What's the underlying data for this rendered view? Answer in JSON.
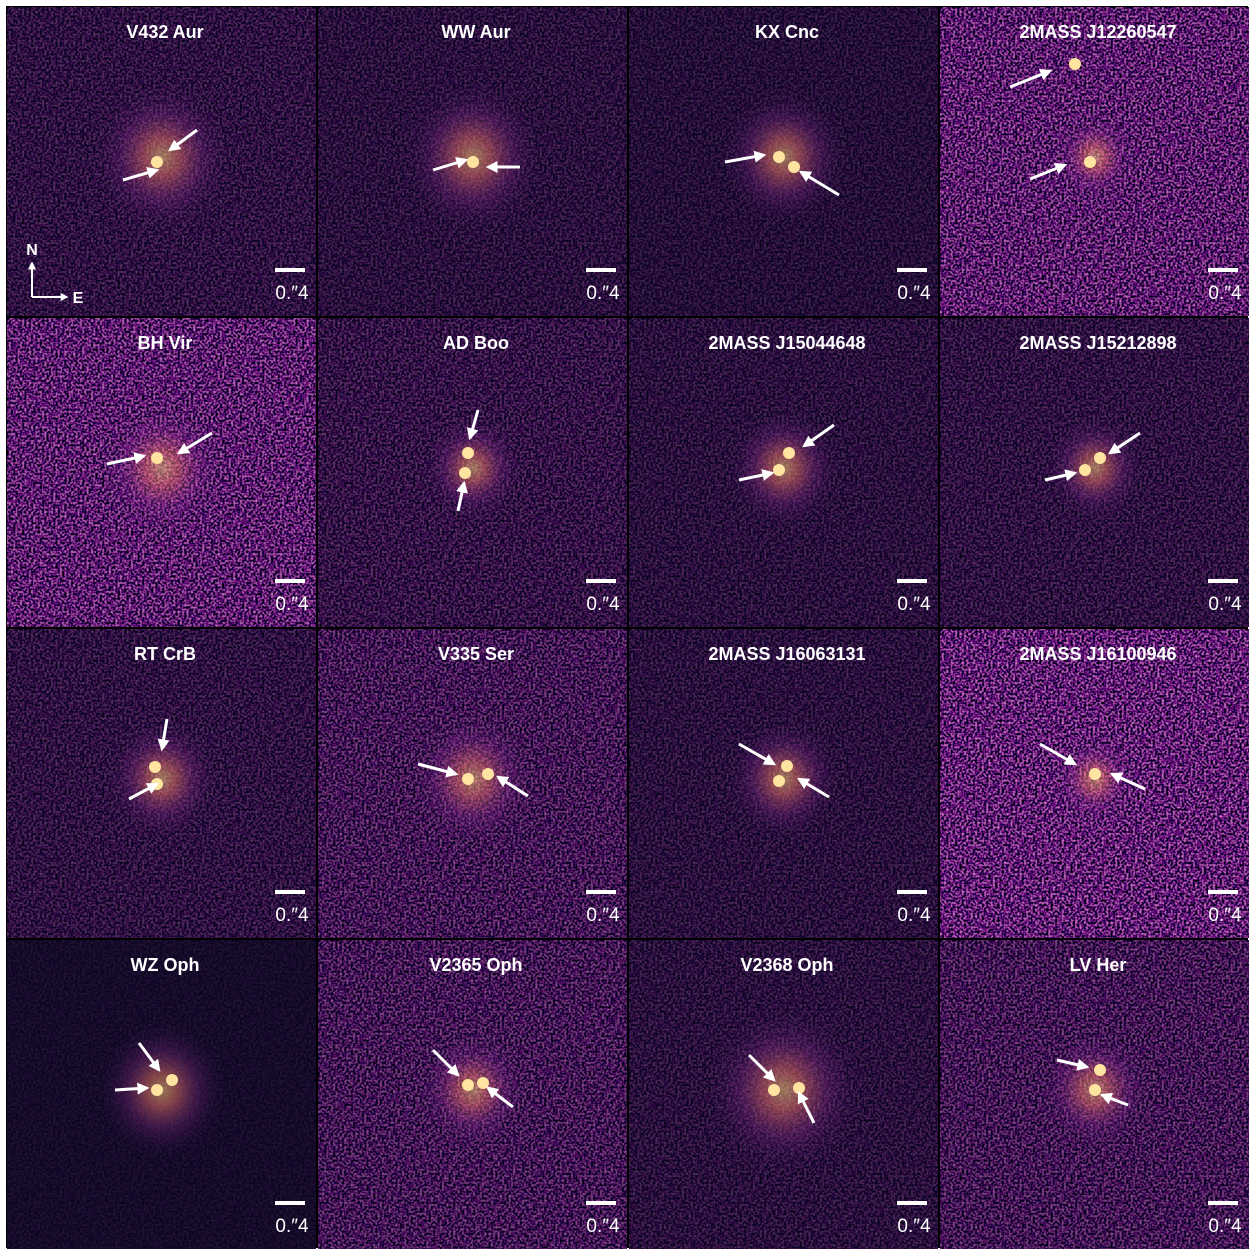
{
  "panels": [
    {
      "title": "V432 Aur",
      "scale_label": "0.″4"
    },
    {
      "title": "WW Aur",
      "scale_label": "0.″4"
    },
    {
      "title": "KX Cnc",
      "scale_label": "0.″4"
    },
    {
      "title": "2MASS J12260547",
      "scale_label": "0.″4"
    },
    {
      "title": "BH Vir",
      "scale_label": "0.″4"
    },
    {
      "title": "AD Boo",
      "scale_label": "0.″4"
    },
    {
      "title": "2MASS J15044648",
      "scale_label": "0.″4"
    },
    {
      "title": "2MASS J15212898",
      "scale_label": "0.″4"
    },
    {
      "title": "RT CrB",
      "scale_label": "0.″4"
    },
    {
      "title": "V335 Ser",
      "scale_label": "0.″4"
    },
    {
      "title": "2MASS J16063131",
      "scale_label": "0.″4"
    },
    {
      "title": "2MASS J16100946",
      "scale_label": "0.″4"
    },
    {
      "title": "WZ Oph",
      "scale_label": "0.″4"
    },
    {
      "title": "V2365 Oph",
      "scale_label": "0.″4"
    },
    {
      "title": "V2368 Oph",
      "scale_label": "0.″4"
    },
    {
      "title": "LV Her",
      "scale_label": "0.″4"
    }
  ],
  "compass": {
    "north": "N",
    "east": "E"
  }
}
